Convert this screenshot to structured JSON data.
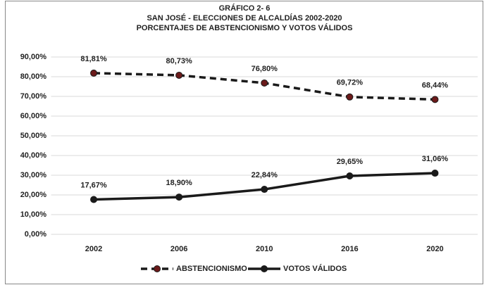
{
  "chart_data": {
    "type": "line",
    "title": [
      "GRÁFICO  2- 6",
      "SAN JOSÉ - ELECCIONES DE ALCALDÍAS 2002-2020",
      "PORCENTAJES DE ABSTENCIONISMO Y VOTOS VÁLIDOS"
    ],
    "categories": [
      "2002",
      "2006",
      "2010",
      "2016",
      "2020"
    ],
    "series": [
      {
        "name": "ABSTENCIONISMO",
        "color": "#1a1a1a",
        "marker_color": "#6b1a1a",
        "line_style": "dashed",
        "values": [
          81.81,
          80.73,
          76.8,
          69.72,
          68.44
        ],
        "value_labels": [
          "81,81%",
          "80,73%",
          "76,80%",
          "69,72%",
          "68,44%"
        ]
      },
      {
        "name": "VOTOS VÁLIDOS",
        "color": "#1a1a1a",
        "marker_color": "#1a1a1a",
        "line_style": "solid",
        "values": [
          17.67,
          18.9,
          22.84,
          29.65,
          31.06
        ],
        "value_labels": [
          "17,67%",
          "18,90%",
          "22,84%",
          "29,65%",
          "31,06%"
        ]
      }
    ],
    "ylim": [
      0,
      90
    ],
    "yticks": [
      {
        "value": 0,
        "label": "0,00%"
      },
      {
        "value": 10,
        "label": "10,00%"
      },
      {
        "value": 20,
        "label": "20,00%"
      },
      {
        "value": 30,
        "label": "30,00%"
      },
      {
        "value": 40,
        "label": "40,00%"
      },
      {
        "value": 50,
        "label": "50,00%"
      },
      {
        "value": 60,
        "label": "60,00%"
      },
      {
        "value": 70,
        "label": "70,00%"
      },
      {
        "value": 80,
        "label": "80,00%"
      },
      {
        "value": 90,
        "label": "90,00%"
      }
    ],
    "grid": true,
    "legend": "bottom"
  }
}
